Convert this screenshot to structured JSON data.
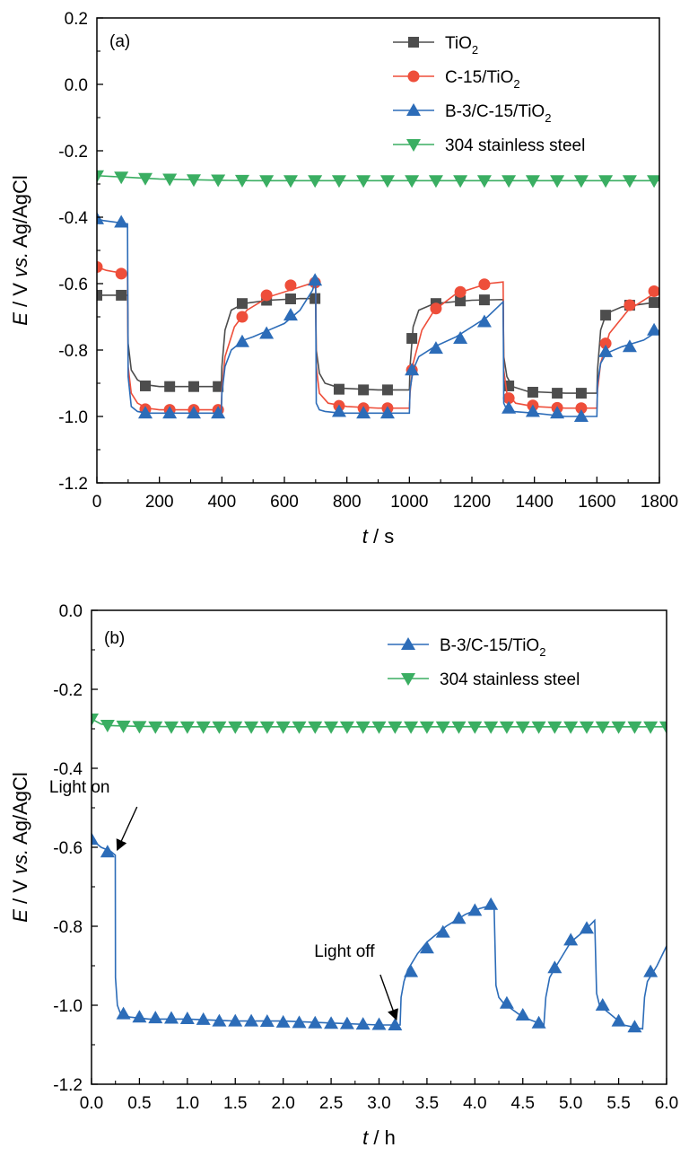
{
  "chart_data": [
    {
      "type": "line",
      "panel_label": "(a)",
      "xlabel_var": "t",
      "xlabel_unit": " / s",
      "ylabel_E": "E",
      "ylabel_mid": " / V ",
      "ylabel_vs": "vs.",
      "ylabel_ref": " Ag/AgCl",
      "xlim": [
        0,
        1800
      ],
      "ylim": [
        -1.2,
        0.2
      ],
      "xticks": [
        0,
        200,
        400,
        600,
        800,
        1000,
        1200,
        1400,
        1600,
        1800
      ],
      "xtick_labels": [
        "0",
        "200",
        "400",
        "600",
        "800",
        "1000",
        "1200",
        "1400",
        "1600",
        "1800"
      ],
      "yticks": [
        -1.2,
        -1.0,
        -0.8,
        -0.6,
        -0.4,
        -0.2,
        0.0,
        0.2
      ],
      "ytick_labels": [
        "-1.2",
        "-1.0",
        "-0.8",
        "-0.6",
        "-0.4",
        "-0.2",
        "0.0",
        "0.2"
      ],
      "legend_position": "top-right",
      "series": [
        {
          "name": "TiO",
          "name_sub": "2",
          "color": "#4d4d4d",
          "marker": "square",
          "x": [
            0,
            50,
            98,
            100,
            110,
            130,
            160,
            200,
            300,
            398,
            400,
            410,
            430,
            470,
            550,
            650,
            700,
            702,
            712,
            730,
            780,
            900,
            1000,
            1002,
            1012,
            1030,
            1080,
            1200,
            1300,
            1302,
            1312,
            1330,
            1380,
            1500,
            1600,
            1602,
            1612,
            1630,
            1680,
            1800
          ],
          "y": [
            -0.635,
            -0.635,
            -0.635,
            -0.78,
            -0.86,
            -0.89,
            -0.905,
            -0.91,
            -0.91,
            -0.91,
            -0.85,
            -0.74,
            -0.68,
            -0.66,
            -0.65,
            -0.645,
            -0.645,
            -0.8,
            -0.87,
            -0.9,
            -0.915,
            -0.92,
            -0.92,
            -0.85,
            -0.73,
            -0.68,
            -0.66,
            -0.65,
            -0.648,
            -0.82,
            -0.88,
            -0.91,
            -0.925,
            -0.93,
            -0.93,
            -0.86,
            -0.74,
            -0.69,
            -0.67,
            -0.655
          ],
          "markers_x": [
            0,
            78,
            155,
            233,
            310,
            388,
            465,
            543,
            620,
            698,
            775,
            853,
            930,
            1008,
            1085,
            1163,
            1240,
            1318,
            1395,
            1473,
            1550,
            1628,
            1705,
            1783
          ],
          "markers_y": [
            -0.635,
            -0.635,
            -0.908,
            -0.91,
            -0.91,
            -0.91,
            -0.66,
            -0.65,
            -0.646,
            -0.645,
            -0.918,
            -0.92,
            -0.92,
            -0.765,
            -0.66,
            -0.652,
            -0.649,
            -0.908,
            -0.927,
            -0.93,
            -0.93,
            -0.695,
            -0.665,
            -0.657
          ]
        },
        {
          "name": "C-15/TiO",
          "name_sub": "2",
          "color": "#ee4e3a",
          "marker": "circle",
          "x": [
            0,
            30,
            60,
            98,
            100,
            110,
            130,
            160,
            200,
            300,
            398,
            400,
            410,
            440,
            480,
            550,
            650,
            700,
            702,
            712,
            740,
            800,
            900,
            1000,
            1002,
            1012,
            1040,
            1080,
            1150,
            1250,
            1300,
            1302,
            1312,
            1340,
            1400,
            1500,
            1600,
            1602,
            1612,
            1640,
            1700,
            1800
          ],
          "y": [
            -0.55,
            -0.56,
            -0.565,
            -0.57,
            -0.85,
            -0.93,
            -0.96,
            -0.975,
            -0.98,
            -0.98,
            -0.98,
            -0.92,
            -0.82,
            -0.73,
            -0.68,
            -0.64,
            -0.61,
            -0.595,
            -0.85,
            -0.93,
            -0.96,
            -0.97,
            -0.975,
            -0.975,
            -0.93,
            -0.84,
            -0.74,
            -0.68,
            -0.63,
            -0.6,
            -0.595,
            -0.86,
            -0.93,
            -0.96,
            -0.97,
            -0.975,
            -0.975,
            -0.92,
            -0.84,
            -0.75,
            -0.68,
            -0.62
          ],
          "markers_x": [
            0,
            78,
            155,
            233,
            310,
            388,
            465,
            543,
            620,
            698,
            775,
            853,
            930,
            1008,
            1085,
            1163,
            1240,
            1318,
            1395,
            1473,
            1550,
            1628,
            1705,
            1783
          ],
          "markers_y": [
            -0.55,
            -0.57,
            -0.978,
            -0.98,
            -0.98,
            -0.98,
            -0.7,
            -0.635,
            -0.605,
            -0.597,
            -0.968,
            -0.975,
            -0.975,
            -0.86,
            -0.675,
            -0.625,
            -0.602,
            -0.945,
            -0.967,
            -0.974,
            -0.975,
            -0.78,
            -0.665,
            -0.623
          ]
        },
        {
          "name": "B-3/C-15/TiO",
          "name_sub": "2",
          "color": "#2c6cb8",
          "marker": "triangle-up",
          "x": [
            0,
            20,
            98,
            100,
            110,
            130,
            160,
            200,
            300,
            398,
            400,
            410,
            430,
            470,
            500,
            550,
            600,
            650,
            690,
            700,
            702,
            712,
            730,
            780,
            900,
            1000,
            1002,
            1012,
            1030,
            1080,
            1150,
            1250,
            1300,
            1302,
            1312,
            1330,
            1400,
            1500,
            1600,
            1602,
            1612,
            1630,
            1680,
            1750,
            1800
          ],
          "y": [
            -0.405,
            -0.41,
            -0.42,
            -0.88,
            -0.97,
            -0.985,
            -0.99,
            -0.99,
            -0.99,
            -0.99,
            -0.93,
            -0.85,
            -0.8,
            -0.77,
            -0.76,
            -0.74,
            -0.72,
            -0.68,
            -0.62,
            -0.59,
            -0.96,
            -0.98,
            -0.985,
            -0.99,
            -0.99,
            -0.99,
            -0.92,
            -0.86,
            -0.82,
            -0.79,
            -0.76,
            -0.7,
            -0.655,
            -0.96,
            -0.98,
            -0.985,
            -0.99,
            -1.0,
            -1.0,
            -0.9,
            -0.84,
            -0.81,
            -0.79,
            -0.77,
            -0.74
          ],
          "markers_x": [
            0,
            78,
            155,
            233,
            310,
            388,
            465,
            543,
            620,
            698,
            775,
            853,
            930,
            1008,
            1085,
            1163,
            1240,
            1318,
            1395,
            1473,
            1550,
            1628,
            1705,
            1783
          ],
          "markers_y": [
            -0.405,
            -0.415,
            -0.99,
            -0.99,
            -0.99,
            -0.99,
            -0.775,
            -0.75,
            -0.695,
            -0.59,
            -0.985,
            -0.99,
            -0.99,
            -0.86,
            -0.795,
            -0.765,
            -0.715,
            -0.975,
            -0.985,
            -0.99,
            -1.0,
            -0.805,
            -0.79,
            -0.74
          ]
        },
        {
          "name": "304 stainless steel",
          "name_sub": "",
          "color": "#3aae62",
          "marker": "triangle-down",
          "x": [
            0,
            100,
            200,
            300,
            400,
            500,
            600,
            700,
            800,
            900,
            1000,
            1100,
            1200,
            1300,
            1400,
            1500,
            1600,
            1700,
            1800
          ],
          "y": [
            -0.275,
            -0.28,
            -0.285,
            -0.287,
            -0.289,
            -0.29,
            -0.29,
            -0.29,
            -0.29,
            -0.29,
            -0.29,
            -0.29,
            -0.29,
            -0.29,
            -0.29,
            -0.29,
            -0.29,
            -0.29,
            -0.29
          ],
          "markers_x": [
            0,
            78,
            155,
            233,
            310,
            388,
            465,
            543,
            620,
            698,
            775,
            853,
            930,
            1008,
            1085,
            1163,
            1240,
            1318,
            1395,
            1473,
            1550,
            1628,
            1705,
            1783
          ],
          "markers_y": [
            -0.275,
            -0.279,
            -0.283,
            -0.285,
            -0.287,
            -0.288,
            -0.289,
            -0.29,
            -0.29,
            -0.29,
            -0.29,
            -0.29,
            -0.29,
            -0.29,
            -0.29,
            -0.29,
            -0.29,
            -0.29,
            -0.29,
            -0.29,
            -0.29,
            -0.29,
            -0.29,
            -0.29
          ]
        }
      ]
    },
    {
      "type": "line",
      "panel_label": "(b)",
      "xlabel_var": "t",
      "xlabel_unit": " / h",
      "ylabel_E": "E",
      "ylabel_mid": " / V ",
      "ylabel_vs": "vs.",
      "ylabel_ref": " Ag/AgCl",
      "xlim": [
        0,
        6.0
      ],
      "ylim": [
        -1.2,
        0.0
      ],
      "xticks": [
        0,
        0.5,
        1.0,
        1.5,
        2.0,
        2.5,
        3.0,
        3.5,
        4.0,
        4.5,
        5.0,
        5.5,
        6.0
      ],
      "xtick_labels": [
        "0.0",
        "0.5",
        "1.0",
        "1.5",
        "2.0",
        "2.5",
        "3.0",
        "3.5",
        "4.0",
        "4.5",
        "5.0",
        "5.5",
        "6.0"
      ],
      "yticks": [
        -1.2,
        -1.0,
        -0.8,
        -0.6,
        -0.4,
        -0.2,
        0.0
      ],
      "ytick_labels": [
        "-1.2",
        "-1.0",
        "-0.8",
        "-0.6",
        "-0.4",
        "-0.2",
        "0.0"
      ],
      "legend_position": "top-right",
      "annotations": [
        {
          "text": "Light on",
          "x": 0.25,
          "y": -0.625
        },
        {
          "text": "Light off",
          "x": 3.2,
          "y": -1.05
        }
      ],
      "series": [
        {
          "name": "B-3/C-15/TiO",
          "name_sub": "2",
          "color": "#2c6cb8",
          "marker": "triangle-up",
          "x": [
            0,
            0.1,
            0.2,
            0.248,
            0.25,
            0.27,
            0.3,
            0.4,
            0.6,
            1.0,
            1.5,
            2.0,
            2.5,
            3.0,
            3.22,
            3.23,
            3.26,
            3.3,
            3.4,
            3.5,
            3.7,
            3.9,
            4.05,
            4.2,
            4.22,
            4.25,
            4.3,
            4.5,
            4.72,
            4.74,
            4.78,
            4.85,
            5.0,
            5.15,
            5.25,
            5.27,
            5.3,
            5.4,
            5.55,
            5.75,
            5.77,
            5.8,
            5.9,
            6.0
          ],
          "y": [
            -0.58,
            -0.6,
            -0.61,
            -0.62,
            -0.93,
            -1.0,
            -1.02,
            -1.03,
            -1.035,
            -1.035,
            -1.04,
            -1.04,
            -1.045,
            -1.05,
            -1.05,
            -0.98,
            -0.94,
            -0.91,
            -0.87,
            -0.84,
            -0.8,
            -0.77,
            -0.755,
            -0.745,
            -0.95,
            -0.98,
            -0.995,
            -1.03,
            -1.05,
            -0.98,
            -0.93,
            -0.9,
            -0.84,
            -0.81,
            -0.785,
            -0.97,
            -1.0,
            -1.02,
            -1.05,
            -1.06,
            -0.98,
            -0.94,
            -0.9,
            -0.85
          ],
          "markers_x": [
            0,
            0.167,
            0.333,
            0.5,
            0.667,
            0.833,
            1.0,
            1.167,
            1.333,
            1.5,
            1.667,
            1.833,
            2.0,
            2.167,
            2.333,
            2.5,
            2.667,
            2.833,
            3.0,
            3.167,
            3.333,
            3.5,
            3.667,
            3.833,
            4.0,
            4.167,
            4.333,
            4.5,
            4.667,
            4.833,
            5.0,
            5.167,
            5.333,
            5.5,
            5.667,
            5.833
          ],
          "markers_y": [
            -0.58,
            -0.612,
            -1.022,
            -1.03,
            -1.032,
            -1.033,
            -1.034,
            -1.036,
            -1.04,
            -1.04,
            -1.04,
            -1.041,
            -1.043,
            -1.044,
            -1.045,
            -1.046,
            -1.047,
            -1.048,
            -1.049,
            -1.05,
            -0.915,
            -0.855,
            -0.815,
            -0.78,
            -0.76,
            -0.745,
            -0.995,
            -1.025,
            -1.045,
            -0.905,
            -0.835,
            -0.805,
            -1.0,
            -1.04,
            -1.055,
            -0.915
          ]
        },
        {
          "name": "304 stainless steel",
          "name_sub": "",
          "color": "#3aae62",
          "marker": "triangle-down",
          "x": [
            0,
            0.1,
            0.2,
            0.5,
            1.0,
            2.0,
            3.0,
            4.0,
            5.0,
            6.0
          ],
          "y": [
            -0.275,
            -0.288,
            -0.292,
            -0.294,
            -0.295,
            -0.295,
            -0.295,
            -0.295,
            -0.295,
            -0.295
          ],
          "markers_x": [
            0,
            0.167,
            0.333,
            0.5,
            0.667,
            0.833,
            1.0,
            1.167,
            1.333,
            1.5,
            1.667,
            1.833,
            2.0,
            2.167,
            2.333,
            2.5,
            2.667,
            2.833,
            3.0,
            3.167,
            3.333,
            3.5,
            3.667,
            3.833,
            4.0,
            4.167,
            4.333,
            4.5,
            4.667,
            4.833,
            5.0,
            5.167,
            5.333,
            5.5,
            5.667,
            5.833,
            6.0
          ],
          "markers_y": [
            -0.275,
            -0.291,
            -0.293,
            -0.294,
            -0.295,
            -0.295,
            -0.295,
            -0.295,
            -0.295,
            -0.295,
            -0.295,
            -0.295,
            -0.295,
            -0.295,
            -0.295,
            -0.295,
            -0.295,
            -0.295,
            -0.295,
            -0.295,
            -0.295,
            -0.295,
            -0.295,
            -0.295,
            -0.295,
            -0.295,
            -0.295,
            -0.295,
            -0.295,
            -0.295,
            -0.295,
            -0.295,
            -0.295,
            -0.295,
            -0.295,
            -0.295,
            -0.295
          ]
        }
      ]
    }
  ]
}
